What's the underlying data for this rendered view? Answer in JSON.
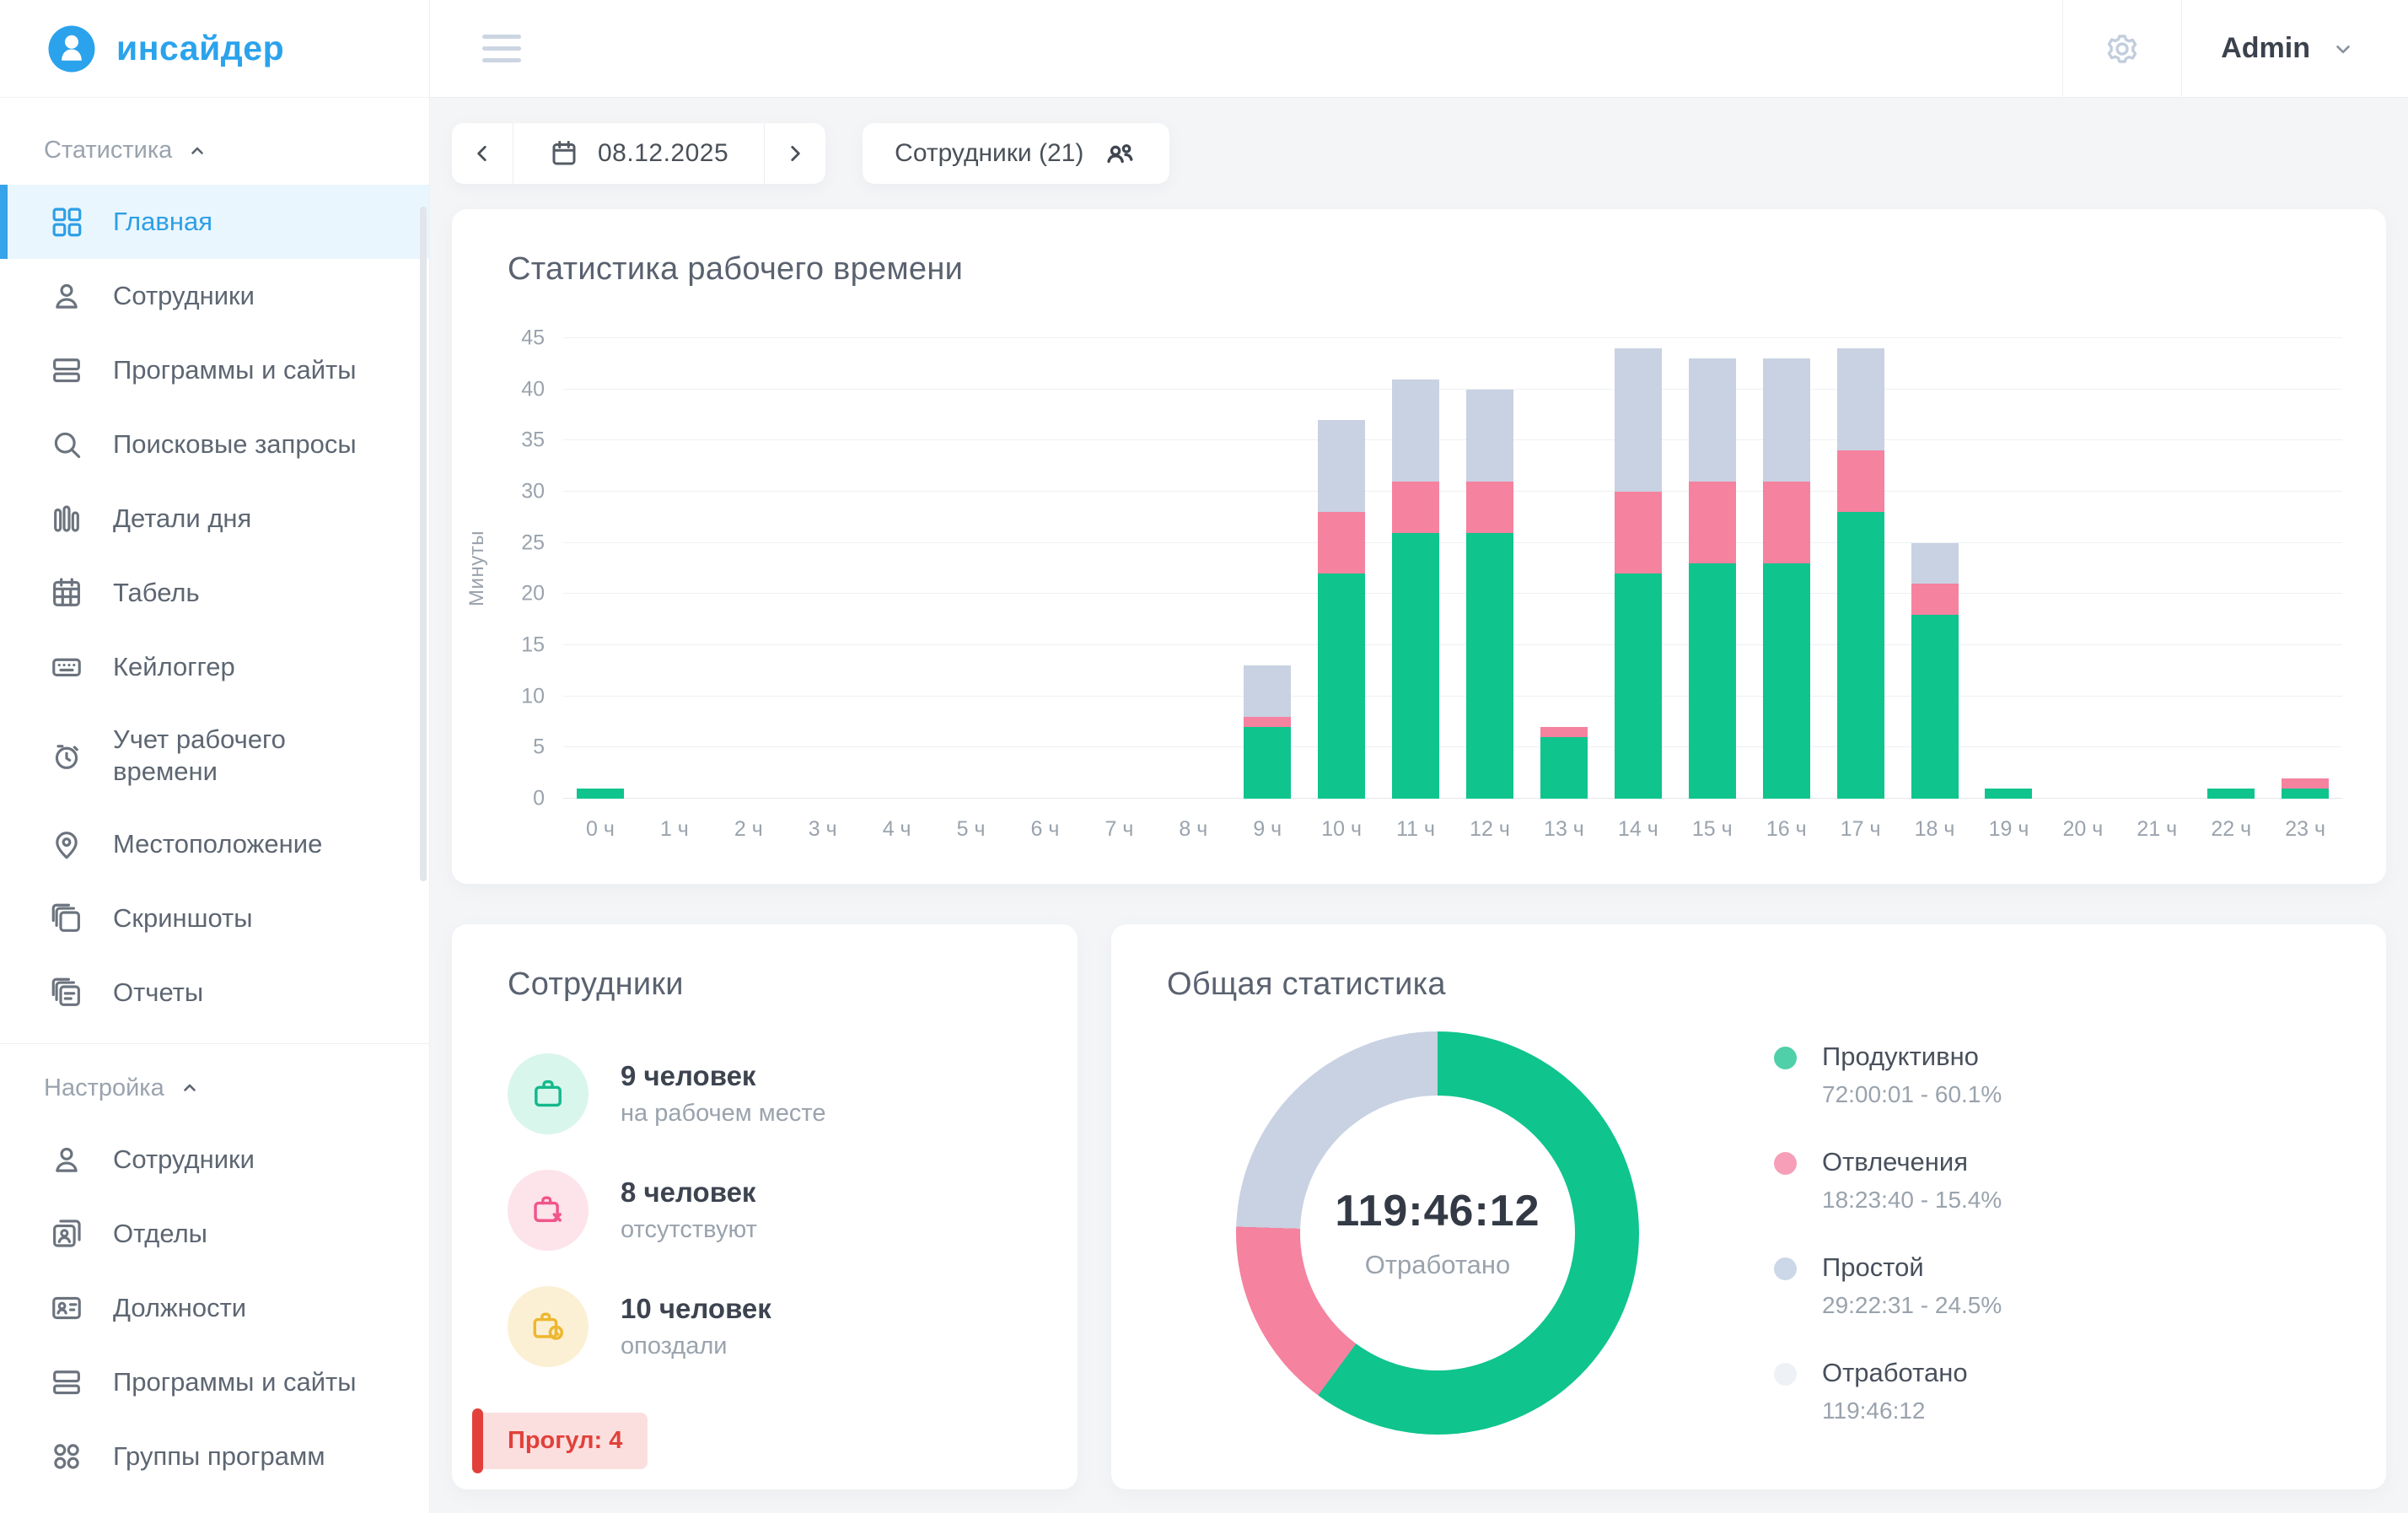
{
  "app": {
    "logo_text": "инсайдер"
  },
  "header": {
    "user_menu_label": "Admin"
  },
  "toolbar": {
    "date": "08.12.2025",
    "employees_button": "Сотрудники (21)"
  },
  "sidebar": {
    "sections": [
      {
        "label": "Статистика",
        "items": [
          {
            "id": "home",
            "label": "Главная",
            "icon": "dashboard",
            "active": true
          },
          {
            "id": "employees",
            "label": "Сотрудники",
            "icon": "person",
            "active": false
          },
          {
            "id": "programs-sites",
            "label": "Программы и сайты",
            "icon": "rows",
            "active": false
          },
          {
            "id": "search-queries",
            "label": "Поисковые запросы",
            "icon": "search",
            "active": false
          },
          {
            "id": "day-details",
            "label": "Детали дня",
            "icon": "bars",
            "active": false
          },
          {
            "id": "timesheet",
            "label": "Табель",
            "icon": "calendar-grid",
            "active": false
          },
          {
            "id": "keylogger",
            "label": "Кейлоггер",
            "icon": "keyboard",
            "active": false
          },
          {
            "id": "time-tracking",
            "label": "Учет рабочего времени",
            "icon": "stopwatch",
            "active": false
          },
          {
            "id": "location",
            "label": "Местоположение",
            "icon": "pin",
            "active": false
          },
          {
            "id": "screenshots",
            "label": "Скриншоты",
            "icon": "layers",
            "active": false
          },
          {
            "id": "reports",
            "label": "Отчеты",
            "icon": "docs",
            "active": false
          }
        ]
      },
      {
        "label": "Настройка",
        "items": [
          {
            "id": "settings-employees",
            "label": "Сотрудники",
            "icon": "person",
            "active": false
          },
          {
            "id": "departments",
            "label": "Отделы",
            "icon": "cards",
            "active": false
          },
          {
            "id": "positions",
            "label": "Должности",
            "icon": "badge",
            "active": false
          },
          {
            "id": "settings-programs-sites",
            "label": "Программы и сайты",
            "icon": "rows",
            "active": false
          },
          {
            "id": "program-groups",
            "label": "Группы программ",
            "icon": "grid-circles",
            "active": false
          }
        ]
      }
    ]
  },
  "chart_card": {
    "title": "Статистика рабочего времени"
  },
  "chart_data": {
    "type": "bar",
    "stacked": true,
    "grid": true,
    "title": "Статистика рабочего времени",
    "ylabel": "Минуты",
    "ylim": [
      0,
      45
    ],
    "ytick_step": 5,
    "categories": [
      "0 ч",
      "1 ч",
      "2 ч",
      "3 ч",
      "4 ч",
      "5 ч",
      "6 ч",
      "7 ч",
      "8 ч",
      "9 ч",
      "10 ч",
      "11 ч",
      "12 ч",
      "13 ч",
      "14 ч",
      "15 ч",
      "16 ч",
      "17 ч",
      "18 ч",
      "19 ч",
      "20 ч",
      "21 ч",
      "22 ч",
      "23 ч"
    ],
    "series": [
      {
        "name": "Продуктивно",
        "color": "#0fc48d",
        "values": [
          1,
          0,
          0,
          0,
          0,
          0,
          0,
          0,
          0,
          7,
          22,
          26,
          26,
          6,
          22,
          23,
          23,
          28,
          18,
          1,
          0,
          0,
          1,
          1
        ]
      },
      {
        "name": "Отвлечения",
        "color": "#f5829f",
        "values": [
          0,
          0,
          0,
          0,
          0,
          0,
          0,
          0,
          0,
          1,
          6,
          5,
          5,
          1,
          8,
          8,
          8,
          6,
          3,
          0,
          0,
          0,
          0,
          1
        ]
      },
      {
        "name": "Простой",
        "color": "#c8d2e2",
        "values": [
          0,
          0,
          0,
          0,
          0,
          0,
          0,
          0,
          0,
          5,
          9,
          10,
          9,
          0,
          14,
          12,
          12,
          10,
          4,
          0,
          0,
          0,
          0,
          0
        ]
      }
    ]
  },
  "employees_card": {
    "title": "Сотрудники",
    "stats": [
      {
        "id": "present",
        "value": "9 человек",
        "label": "на рабочем месте",
        "icon": "briefcase",
        "icon_color": "#14b98c",
        "circle_color": "#d9f6ec"
      },
      {
        "id": "absent",
        "value": "8 человек",
        "label": "отсутствуют",
        "icon": "briefcase-x",
        "icon_color": "#f0558b",
        "circle_color": "#fde3ea"
      },
      {
        "id": "late",
        "value": "10 человек",
        "label": "опоздали",
        "icon": "briefcase-clock",
        "icon_color": "#edb72f",
        "circle_color": "#fcf0d4"
      }
    ],
    "badge": "Прогул: 4"
  },
  "summary_card": {
    "title": "Общая статистика",
    "center_value": "119:46:12",
    "center_label": "Отработано",
    "donut_segments": [
      {
        "label": "Продуктивно",
        "pct": 60.1,
        "color": "#0fc48d"
      },
      {
        "label": "Отвлечения",
        "pct": 15.4,
        "color": "#f5829f"
      },
      {
        "label": "Простой",
        "pct": 24.5,
        "color": "#c8d2e2"
      }
    ],
    "legend": [
      {
        "label": "Продуктивно",
        "detail": "72:00:01 - 60.1%",
        "dot_color": "#4fd0a8"
      },
      {
        "label": "Отвлечения",
        "detail": "18:23:40 - 15.4%",
        "dot_color": "#f79fb8"
      },
      {
        "label": "Простой",
        "detail": "29:22:31 - 24.5%",
        "dot_color": "#ccd7e8"
      },
      {
        "label": "Отработано",
        "detail": "119:46:12",
        "dot_color": "#eef1f5"
      }
    ]
  }
}
